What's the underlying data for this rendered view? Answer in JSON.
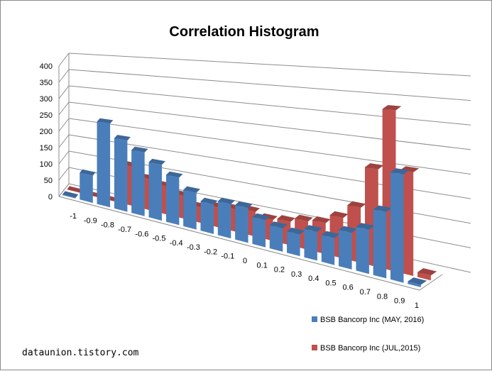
{
  "chart_data": {
    "type": "bar",
    "title": "Correlation Histogram",
    "categories": [
      "-1",
      "-0.9",
      "-0.8",
      "-0.7",
      "-0.6",
      "-0.5",
      "-0.4",
      "-0.3",
      "-0.2",
      "-0.1",
      "0",
      "0.1",
      "0.2",
      "0.3",
      "0.4",
      "0.5",
      "0.6",
      "0.7",
      "0.8",
      "0.9",
      "1"
    ],
    "series": [
      {
        "name": "BSB Bancorp Inc (MAY, 2016)",
        "color": "#4a7ebb",
        "values": [
          2,
          80,
          240,
          200,
          175,
          150,
          125,
          95,
          75,
          85,
          85,
          65,
          55,
          50,
          65,
          60,
          80,
          95,
          140,
          225,
          5
        ]
      },
      {
        "name": "BSB Bancorp Inc (JUL,2015)",
        "color": "#c0504d",
        "values": [
          0,
          0,
          0,
          110,
          85,
          75,
          60,
          40,
          50,
          55,
          60,
          50,
          55,
          65,
          70,
          90,
          120,
          210,
          340,
          215,
          10
        ]
      }
    ],
    "ylim": [
      0,
      400
    ],
    "yticks": [
      0,
      50,
      100,
      150,
      200,
      250,
      300,
      350,
      400
    ],
    "xlabel": "",
    "ylabel": "",
    "grid": true,
    "legend": "bottom-right"
  },
  "watermark": "dataunion.tistory.com"
}
